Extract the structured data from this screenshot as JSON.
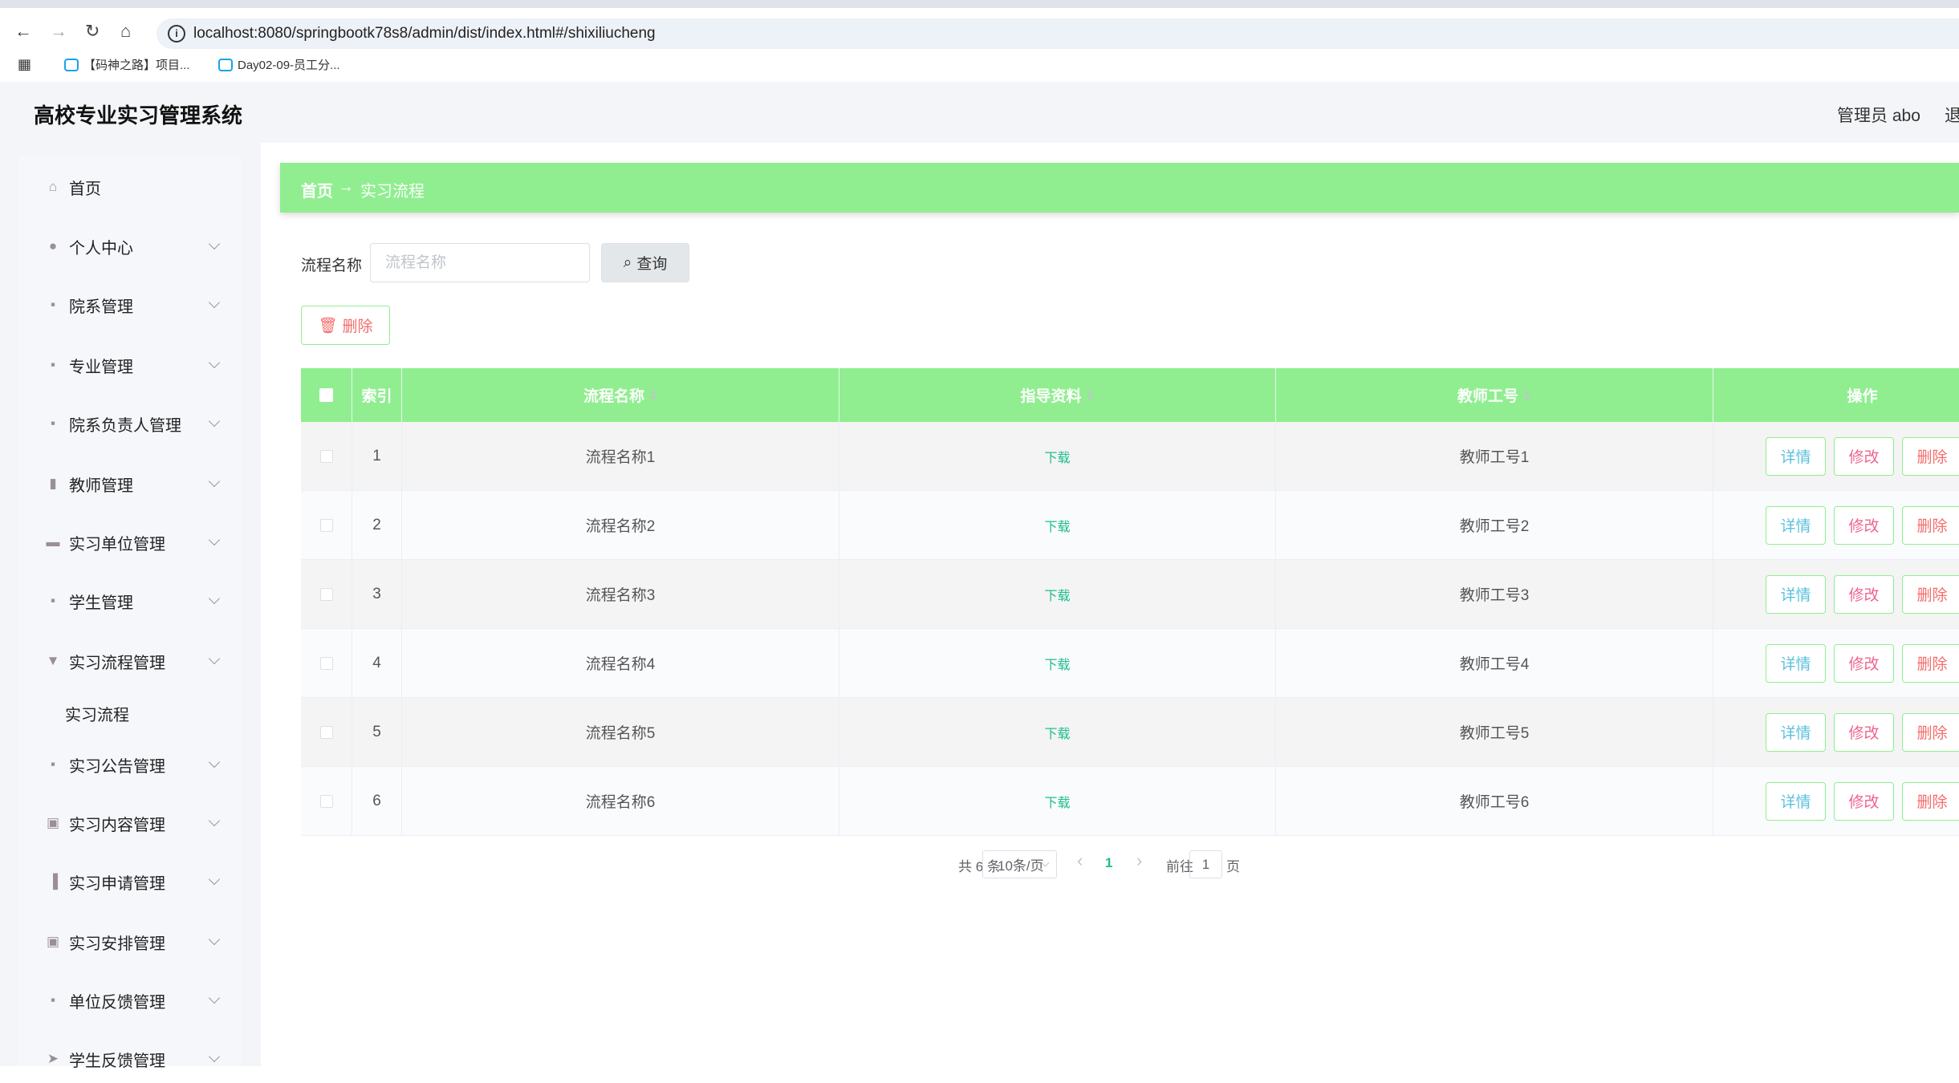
{
  "browser": {
    "url": "localhost:8080/springbootk78s8/admin/dist/index.html#/shixiliucheng",
    "bookmarks": [
      {
        "label": "【码神之路】项目..."
      },
      {
        "label": "Day02-09-员工分..."
      }
    ]
  },
  "header": {
    "title": "高校专业实习管理系统",
    "user": "管理员 abo",
    "logout": "退"
  },
  "sidebar": {
    "items": [
      {
        "label": "首页",
        "icon": "home-icon"
      },
      {
        "label": "个人中心",
        "icon": "user-icon"
      },
      {
        "label": "院系管理",
        "icon": "grid-icon"
      },
      {
        "label": "专业管理",
        "icon": "grid-icon"
      },
      {
        "label": "院系负责人管理",
        "icon": "grid-icon"
      },
      {
        "label": "教师管理",
        "icon": "books-icon"
      },
      {
        "label": "实习单位管理",
        "icon": "ticket-icon"
      },
      {
        "label": "学生管理",
        "icon": "grid-icon"
      },
      {
        "label": "实习流程管理",
        "icon": "funnel-icon"
      },
      {
        "label": "实习流程",
        "icon": ""
      },
      {
        "label": "实习公告管理",
        "icon": "grid-icon"
      },
      {
        "label": "实习内容管理",
        "icon": "clipboard-x-icon"
      },
      {
        "label": "实习申请管理",
        "icon": "bar-chart-icon"
      },
      {
        "label": "实习安排管理",
        "icon": "clipboard-check-icon"
      },
      {
        "label": "单位反馈管理",
        "icon": "grid-icon"
      },
      {
        "label": "学生反馈管理",
        "icon": "send-icon"
      }
    ]
  },
  "breadcrumb": {
    "home": "首页",
    "arrow": "→",
    "current": "实习流程"
  },
  "search": {
    "label": "流程名称",
    "placeholder": "流程名称",
    "button": "查询"
  },
  "toolbar": {
    "delete": "删除"
  },
  "table": {
    "headers": [
      "索引",
      "流程名称",
      "指导资料",
      "教师工号",
      "操作"
    ],
    "rows": [
      {
        "index": "1",
        "name": "流程名称1",
        "doc": "下载",
        "teacher": "教师工号1"
      },
      {
        "index": "2",
        "name": "流程名称2",
        "doc": "下载",
        "teacher": "教师工号2"
      },
      {
        "index": "3",
        "name": "流程名称3",
        "doc": "下载",
        "teacher": "教师工号3"
      },
      {
        "index": "4",
        "name": "流程名称4",
        "doc": "下载",
        "teacher": "教师工号4"
      },
      {
        "index": "5",
        "name": "流程名称5",
        "doc": "下载",
        "teacher": "教师工号5"
      },
      {
        "index": "6",
        "name": "流程名称6",
        "doc": "下载",
        "teacher": "教师工号6"
      }
    ],
    "actions": {
      "detail": "详情",
      "edit": "修改",
      "delete": "删除"
    }
  },
  "pagination": {
    "total": "共 6 条",
    "page_size": "10条/页",
    "current": "1",
    "goto": "前往",
    "goto_value": "1",
    "page_unit": "页"
  },
  "colors": {
    "accent": "#90ee90",
    "download": "#1fbe8e",
    "detail": "#5bc0de",
    "edit": "#f0648e",
    "delete": "#f56c6c"
  }
}
